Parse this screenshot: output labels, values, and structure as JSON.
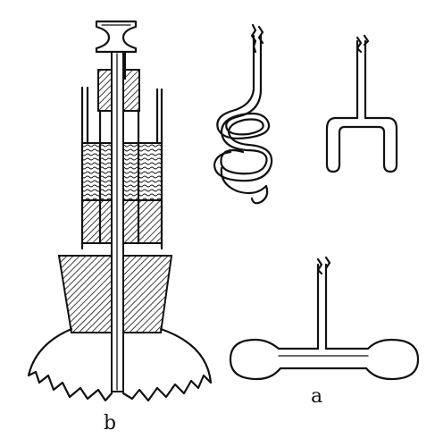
{
  "labels": {
    "left_figure": "b",
    "bottom_right_figure": "a"
  }
}
